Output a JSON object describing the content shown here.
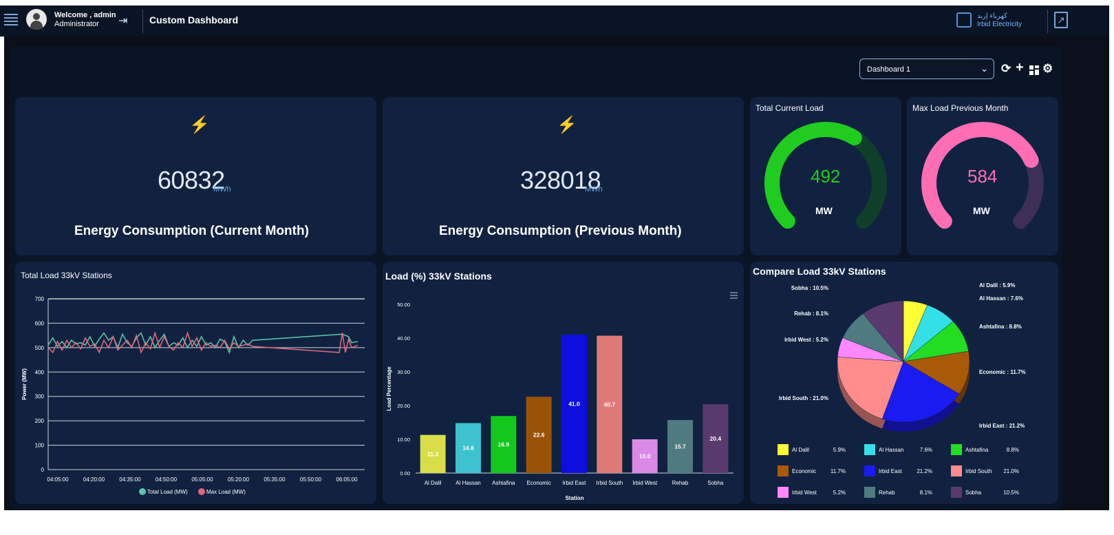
{
  "header": {
    "welcome": "Welcome , admin",
    "role": "Administrator",
    "title": "Custom Dashboard",
    "brand_ar": "كهرباء إربد",
    "brand_en": "Irbid Electricity"
  },
  "toolbar": {
    "dashboard_select": "Dashboard 1",
    "refresh_icon": "refresh-icon",
    "add_icon": "plus-icon",
    "layout_icon": "grid-icon",
    "settings_icon": "gear-icon"
  },
  "cards": {
    "current": {
      "value": "60832",
      "unit": "MWh",
      "title": "Energy Consumption (Current Month)"
    },
    "previous": {
      "value": "328018",
      "unit": "MWh",
      "title": "Energy Consumption (Previous Month)"
    }
  },
  "gauges": [
    {
      "title": "Total Current Load",
      "value": "492",
      "unit": "MW",
      "fraction": 0.62,
      "color": "#1fcc1f",
      "track": "#0f3f2a"
    },
    {
      "title": "Max Load Previous Month",
      "value": "584",
      "unit": "MW",
      "fraction": 0.74,
      "color": "#ff6eb4",
      "track": "#3d2f55"
    }
  ],
  "chart_data": [
    {
      "type": "line",
      "title": "Total Load 33kV Stations",
      "ylabel": "Power (MW)",
      "ylim": [
        0,
        700
      ],
      "yticks": [
        "0",
        "100",
        "200",
        "300",
        "400",
        "500",
        "600",
        "700"
      ],
      "xticks": [
        "04:05:00",
        "04:20:00",
        "04:35:00",
        "04:50:00",
        "05:05:00",
        "05:20:00",
        "05:35:00",
        "05:50:00",
        "06:05:00"
      ],
      "series": [
        {
          "name": "Total Load (MW)",
          "color": "#5cc2a8",
          "x": [
            0,
            1.5,
            3,
            4.5,
            6,
            7.5,
            9,
            10.5,
            12,
            13.5,
            15,
            16.5,
            18,
            19.5,
            21,
            22.5,
            24,
            25.5,
            27,
            28.5,
            30,
            31.5,
            33,
            34.5,
            36,
            37.5,
            39,
            40.5,
            42,
            43.5,
            45,
            46.5,
            48,
            49.5,
            51,
            52.5,
            54,
            55.5,
            57,
            58.5,
            60,
            61.5,
            63,
            64.5,
            66,
            95,
            97,
            98,
            100
          ],
          "y": [
            510,
            540,
            505,
            525,
            500,
            530,
            515,
            520,
            510,
            545,
            505,
            535,
            560,
            530,
            545,
            500,
            555,
            520,
            505,
            540,
            560,
            510,
            545,
            500,
            530,
            555,
            505,
            520,
            510,
            540,
            500,
            530,
            505,
            545,
            510,
            520,
            500,
            535,
            525,
            480,
            545,
            500,
            530,
            510,
            530,
            555,
            545,
            520,
            525
          ]
        },
        {
          "name": "Max Load (MW)",
          "color": "#e0677a",
          "x": [
            0,
            1.5,
            3,
            4.5,
            6,
            7.5,
            9,
            10.5,
            12,
            13.5,
            15,
            16.5,
            18,
            19.5,
            21,
            22.5,
            24,
            25.5,
            27,
            28.5,
            30,
            31.5,
            33,
            34.5,
            36,
            37.5,
            39,
            40.5,
            42,
            43.5,
            45,
            46.5,
            48,
            49.5,
            51,
            52.5,
            54,
            55.5,
            57,
            58.5,
            60,
            61.5,
            63,
            64.5,
            66,
            94,
            95,
            96,
            97,
            98,
            100
          ],
          "y": [
            500,
            480,
            525,
            490,
            530,
            500,
            520,
            495,
            540,
            505,
            515,
            480,
            530,
            500,
            545,
            490,
            510,
            530,
            500,
            550,
            480,
            520,
            495,
            560,
            500,
            545,
            505,
            490,
            520,
            500,
            560,
            505,
            540,
            490,
            520,
            505,
            510,
            500,
            530,
            495,
            520,
            505,
            510,
            515,
            505,
            480,
            560,
            480,
            535,
            500,
            510
          ]
        }
      ],
      "legend": "bottom"
    },
    {
      "type": "bar",
      "title": "Load (%) 33kV Stations",
      "xlabel": "Station",
      "ylabel": "Load Percentage",
      "ylim": [
        0,
        50
      ],
      "yticks": [
        "0.00",
        "10.00",
        "20.00",
        "30.00",
        "40.00",
        "50.00"
      ],
      "categories": [
        "Al Dalil",
        "Al Hassan",
        "Ashtafina",
        "Economic",
        "Irbid East",
        "Irbid South",
        "Irbid West",
        "Rehab",
        "Sobha"
      ],
      "values": [
        11.3,
        14.8,
        16.9,
        22.6,
        41.0,
        40.7,
        10.0,
        15.7,
        20.4
      ],
      "labels": [
        "11.3",
        "14.8",
        "16.9",
        "22.6",
        "41.0",
        "40.7",
        "10.0",
        "15.7",
        "20.4"
      ],
      "colors": [
        "#d9de48",
        "#3cc3cf",
        "#11c81b",
        "#9a5206",
        "#0e0ee0",
        "#e07a78",
        "#d98ae6",
        "#4e7a80",
        "#5a3a6e"
      ]
    },
    {
      "type": "pie",
      "title": "Compare Load 33kV Stations",
      "categories": [
        "Al Dalil",
        "Al Hassan",
        "Ashtafina",
        "Economic",
        "Irbid East",
        "Irbid South",
        "Irbid West",
        "Rehab",
        "Sobha"
      ],
      "values": [
        5.9,
        7.6,
        8.8,
        11.7,
        21.2,
        21.0,
        5.2,
        8.1,
        10.5
      ],
      "slice_labels": [
        "Al Dalil : 5.9%",
        "Al Hassan : 7.6%",
        "Ashtafina : 8.8%",
        "Economic : 11.7%",
        "Irbid East : 21.2%",
        "Irbid South : 21.0%",
        "Irbid West : 5.2%",
        "Rehab : 8.1%",
        "Sobha : 10.5%"
      ],
      "legend_values": [
        "5.9%",
        "7.6%",
        "8.8%",
        "11.7%",
        "21.2%",
        "21.0%",
        "5.2%",
        "8.1%",
        "10.5%"
      ],
      "colors": [
        "#ffff33",
        "#33e0e8",
        "#22dd22",
        "#a85a08",
        "#1a1af2",
        "#ff8c8c",
        "#ff88ff",
        "#4e7a80",
        "#5a3a6e"
      ],
      "legend": "bottom"
    }
  ]
}
